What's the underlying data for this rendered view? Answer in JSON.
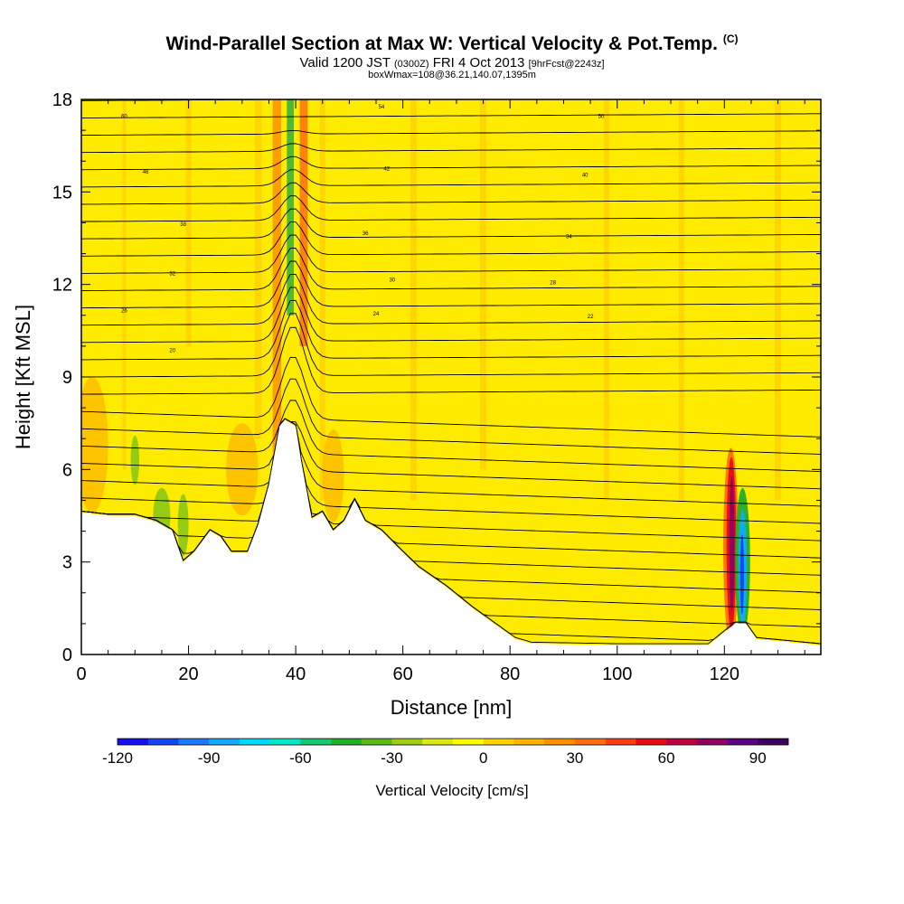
{
  "title": {
    "main": "Wind-Parallel Section at Max W: Vertical Velocity & Pot.Temp.",
    "copyright": "(C)",
    "valid_a": "Valid 1200 JST",
    "valid_z": "(0300Z)",
    "valid_b": "FRI 4 Oct 2013",
    "fcst": "[9hrFcst@2243z]",
    "box": "boxWmax=108@36.21,140.07,1395m"
  },
  "chart_data": {
    "type": "heatmap",
    "xlabel": "Distance [nm]",
    "ylabel": "Height [Kft MSL]",
    "xlim": [
      0,
      138
    ],
    "ylim": [
      0,
      18
    ],
    "xticks": [
      0,
      20,
      40,
      60,
      80,
      100,
      120
    ],
    "yticks": [
      0,
      3,
      6,
      9,
      12,
      15,
      18
    ],
    "terrain_top_kft": [
      [
        0,
        4.6
      ],
      [
        5,
        4.5
      ],
      [
        10,
        4.5
      ],
      [
        14,
        4.3
      ],
      [
        17,
        4.0
      ],
      [
        19,
        3.0
      ],
      [
        21,
        3.3
      ],
      [
        24,
        4.0
      ],
      [
        26,
        3.8
      ],
      [
        28,
        3.3
      ],
      [
        31,
        3.3
      ],
      [
        33,
        4.2
      ],
      [
        35,
        5.5
      ],
      [
        37,
        7.4
      ],
      [
        38,
        7.6
      ],
      [
        40,
        7.4
      ],
      [
        41,
        6.3
      ],
      [
        43,
        4.4
      ],
      [
        45,
        4.6
      ],
      [
        47,
        4.0
      ],
      [
        49,
        4.3
      ],
      [
        51,
        5.0
      ],
      [
        53,
        4.3
      ],
      [
        56,
        4.0
      ],
      [
        60,
        3.3
      ],
      [
        63,
        2.8
      ],
      [
        68,
        2.2
      ],
      [
        73,
        1.5
      ],
      [
        77,
        1.0
      ],
      [
        81,
        0.5
      ],
      [
        84,
        0.35
      ],
      [
        100,
        0.3
      ],
      [
        117,
        0.3
      ],
      [
        122,
        1.0
      ],
      [
        124,
        1.0
      ],
      [
        126,
        0.5
      ],
      [
        138,
        0.3
      ]
    ],
    "theta_label_values": [
      60,
      54,
      50,
      46,
      42,
      40,
      38,
      36,
      34,
      32,
      30,
      28,
      26,
      24,
      22,
      20
    ],
    "cells_note": "",
    "colorbar": {
      "label": "Vertical Velocity [cm/s]",
      "min": -120,
      "max": 100,
      "step": 10,
      "tick_values": [
        -120,
        -90,
        -60,
        -30,
        0,
        30,
        60,
        90
      ],
      "colors": [
        "#1410f0",
        "#1445f5",
        "#1e78ff",
        "#10aaff",
        "#00d8ff",
        "#00e8c8",
        "#18c870",
        "#20b028",
        "#5cb818",
        "#a0cc10",
        "#dcea10",
        "#ffff00",
        "#ffd200",
        "#ffb400",
        "#ff9000",
        "#ff6e10",
        "#ff3c14",
        "#e80c14",
        "#c0003c",
        "#900060",
        "#5a0080",
        "#3c0060"
      ]
    }
  }
}
